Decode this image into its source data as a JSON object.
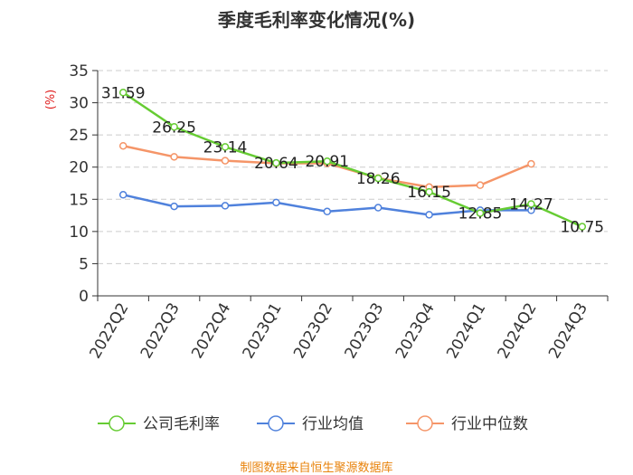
{
  "chart_data": {
    "type": "line",
    "title": "季度毛利率变化情况(%)",
    "ylabel": "(%)",
    "xlabel": "",
    "ylim": [
      0,
      35
    ],
    "yticks": [
      0,
      5,
      10,
      15,
      20,
      25,
      30,
      35
    ],
    "grid": true,
    "legend_position": "bottom",
    "categories": [
      "2022Q2",
      "2022Q3",
      "2022Q4",
      "2023Q1",
      "2023Q2",
      "2023Q3",
      "2023Q4",
      "2024Q1",
      "2024Q2",
      "2024Q3"
    ],
    "series": [
      {
        "name": "公司毛利率",
        "color": "#66cc33",
        "values": [
          31.59,
          26.25,
          23.14,
          20.64,
          20.91,
          18.26,
          16.15,
          12.85,
          14.27,
          10.75
        ],
        "show_labels": true
      },
      {
        "name": "行业均值",
        "color": "#4f81dc",
        "values": [
          15.7,
          13.9,
          14.0,
          14.5,
          13.1,
          13.7,
          12.6,
          13.3,
          13.3,
          null
        ],
        "show_labels": false
      },
      {
        "name": "行业中位数",
        "color": "#f59568",
        "values": [
          23.3,
          21.6,
          21.0,
          20.6,
          20.6,
          18.3,
          16.9,
          17.2,
          20.5,
          null
        ],
        "show_labels": false
      }
    ],
    "source": "制图数据来自恒生聚源数据库"
  }
}
